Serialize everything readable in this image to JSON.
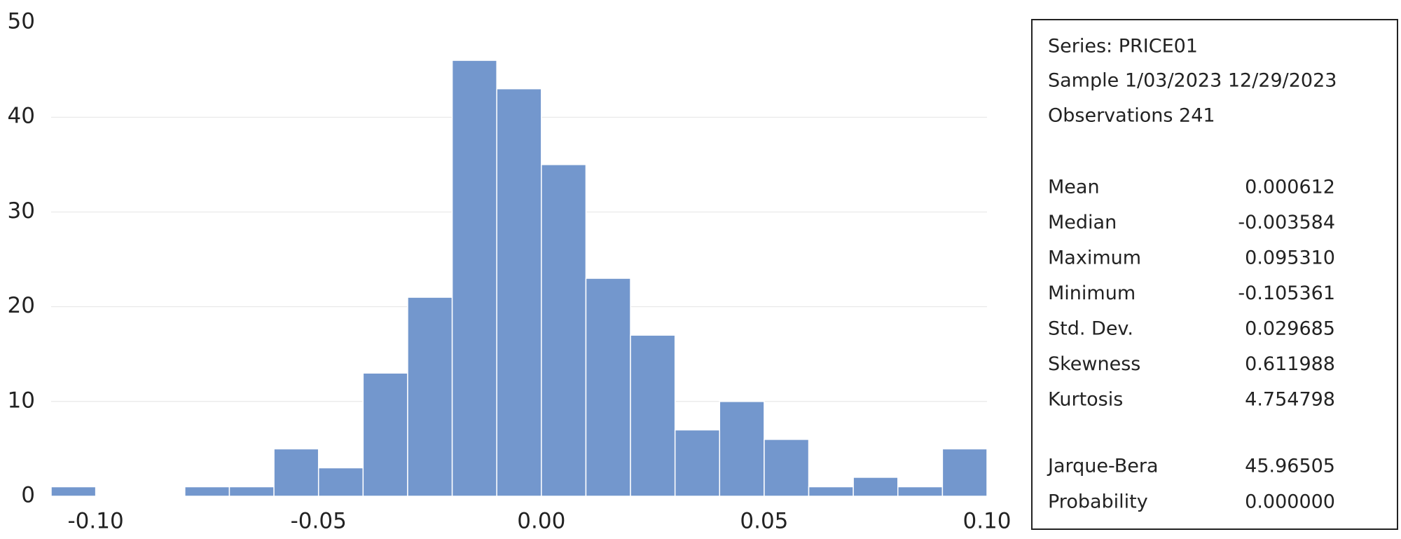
{
  "chart_data": {
    "type": "histogram",
    "bins": [
      -0.11,
      -0.1,
      -0.09,
      -0.08,
      -0.07,
      -0.06,
      -0.05,
      -0.04,
      -0.03,
      -0.02,
      -0.01,
      0.0,
      0.01,
      0.02,
      0.03,
      0.04,
      0.05,
      0.06,
      0.07,
      0.08,
      0.09,
      0.1
    ],
    "values": [
      1,
      0,
      0,
      1,
      1,
      5,
      3,
      13,
      21,
      46,
      43,
      35,
      23,
      17,
      7,
      10,
      6,
      1,
      2,
      1,
      5
    ],
    "color": "#7397cd",
    "xlim": [
      -0.11,
      0.1
    ],
    "xticks": [
      {
        "value": -0.1,
        "label": "-0.10"
      },
      {
        "value": -0.05,
        "label": "-0.05"
      },
      {
        "value": 0,
        "label": "0.00"
      },
      {
        "value": 0.05,
        "label": "0.05"
      },
      {
        "value": 0.1,
        "label": "0.10"
      }
    ],
    "ylim": [
      0,
      50
    ],
    "yticks": [
      0,
      10,
      20,
      30,
      40,
      50
    ],
    "grid": true,
    "stats_box": {
      "series": "Series: PRICE01",
      "sample": "Sample 1/03/2023 12/29/2023",
      "observations": "Observations 241",
      "stats": [
        [
          "Mean",
          "0.000612"
        ],
        [
          "Median",
          "-0.003584"
        ],
        [
          "Maximum",
          "0.095310"
        ],
        [
          "Minimum",
          "-0.105361"
        ],
        [
          "Std. Dev.",
          "0.029685"
        ],
        [
          "Skewness",
          "0.611988"
        ],
        [
          "Kurtosis",
          "4.754798"
        ]
      ],
      "tests": [
        [
          "Jarque-Bera",
          "45.96505"
        ],
        [
          "Probability",
          "0.000000"
        ]
      ]
    }
  }
}
